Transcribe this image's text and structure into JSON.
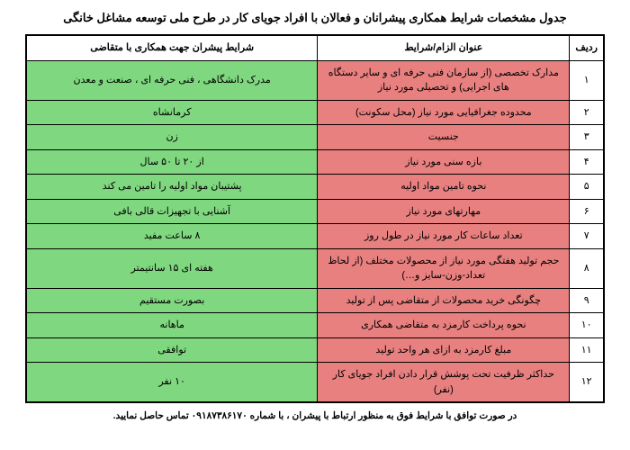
{
  "title": "جدول مشخصات شرایط همکاری پیشرانان و فعالان با افراد جویای کار در طرح ملی توسعه مشاغل خانگی",
  "headers": {
    "idx": "ردیف",
    "condition": "عنوان الزام/شرایط",
    "requirement": "شرایط پیشران جهت همکاری با متقاضی"
  },
  "rows": [
    {
      "idx": "۱",
      "cond": "مدارک تخصصی (از سازمان فنی حرفه ای و سایر دستگاه های اجرایی) و تحصیلی مورد نیاز",
      "req": "مدرک دانشگاهی ، فنی حرفه ای ، صنعت و معدن"
    },
    {
      "idx": "۲",
      "cond": "محدوده جغرافیایی مورد نیاز (محل سکونت)",
      "req": "کرمانشاه"
    },
    {
      "idx": "۳",
      "cond": "جنسیت",
      "req": "زن"
    },
    {
      "idx": "۴",
      "cond": "بازه سنی مورد نیاز",
      "req": "از ۲۰ تا ۵۰ سال"
    },
    {
      "idx": "۵",
      "cond": "نحوه تامین مواد اولیه",
      "req": "پشتیبان مواد اولیه را تامین می کند"
    },
    {
      "idx": "۶",
      "cond": "مهارتهای مورد نیاز",
      "req": "آشنایی با تجهیزات قالی بافی"
    },
    {
      "idx": "۷",
      "cond": "تعداد ساعات کار مورد نیاز در طول روز",
      "req": "۸ ساعت مفید"
    },
    {
      "idx": "۸",
      "cond": "حجم تولید هفتگی مورد نیاز از محصولات مختلف (از لحاظ تعداد-وزن-سایز و…)",
      "req": "هفته ای ۱۵ سانتیمتر"
    },
    {
      "idx": "۹",
      "cond": "چگونگی خرید محصولات از متقاضی پس از تولید",
      "req": "بصورت مستقیم"
    },
    {
      "idx": "۱۰",
      "cond": "نحوه پرداخت کارمزد به متقاضی همکاری",
      "req": "ماهانه"
    },
    {
      "idx": "۱۱",
      "cond": "مبلغ کارمزد به ازای هر واحد تولید",
      "req": "توافقی"
    },
    {
      "idx": "۱۲",
      "cond": "حداکثر ظرفیت تحت پوشش قرار دادن افراد جویای کار (نفر)",
      "req": "۱۰ نفر"
    }
  ],
  "footer": "در صورت توافق با شرایط فوق به منظور ارتباط با پیشران ، با شماره ۰۹۱۸۷۳۸۶۱۷۰ تماس حاصل نمایید.",
  "colors": {
    "red": "#e98080",
    "green": "#7fd77f"
  }
}
